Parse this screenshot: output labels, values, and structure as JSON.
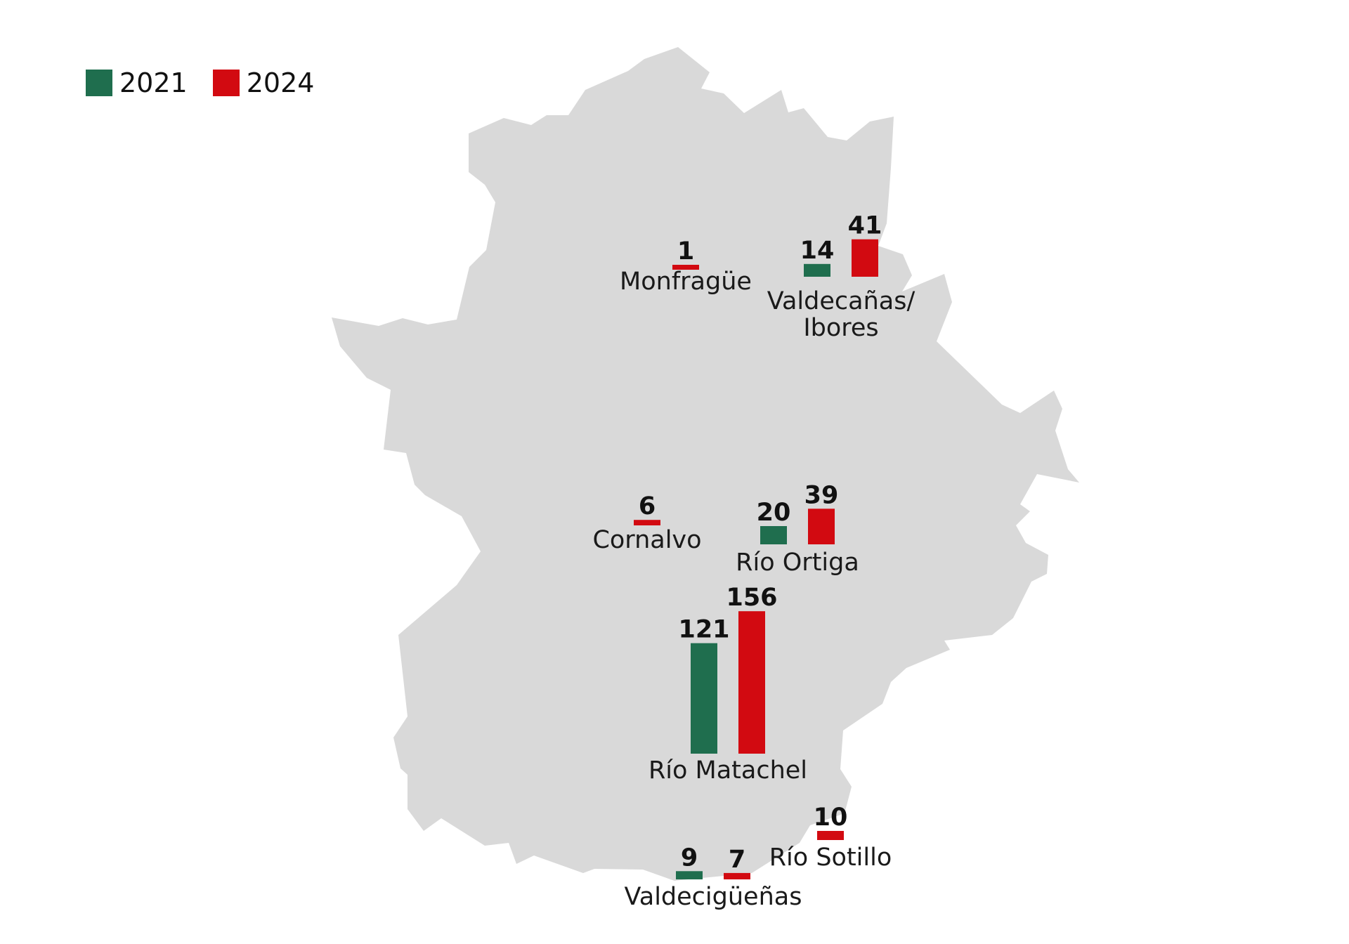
{
  "colors": {
    "map_fill": "#d9d9d9",
    "series_2021": "#1f6e4e",
    "series_2024": "#d20a11",
    "text": "#111111"
  },
  "legend": {
    "items": [
      {
        "label": "2021"
      },
      {
        "label": "2024"
      }
    ]
  },
  "chart_data": {
    "type": "bar",
    "base_map": "Extremadura region outline",
    "series_names": [
      "2021",
      "2024"
    ],
    "sites": [
      {
        "name_lines": [
          "Monfragüe"
        ],
        "values": {
          "2024": 1
        }
      },
      {
        "name_lines": [
          "Valdecañas/",
          "Ibores"
        ],
        "values": {
          "2021": 14,
          "2024": 41
        }
      },
      {
        "name_lines": [
          "Cornalvo"
        ],
        "values": {
          "2024": 6
        }
      },
      {
        "name_lines": [
          "Río Ortiga"
        ],
        "values": {
          "2021": 20,
          "2024": 39
        }
      },
      {
        "name_lines": [
          "Río Matachel"
        ],
        "values": {
          "2021": 121,
          "2024": 156
        }
      },
      {
        "name_lines": [
          "Río Sotillo"
        ],
        "values": {
          "2024": 10
        }
      },
      {
        "name_lines": [
          "Valdecigüeñas"
        ],
        "values": {
          "2021": 9,
          "2024": 7
        }
      }
    ]
  }
}
